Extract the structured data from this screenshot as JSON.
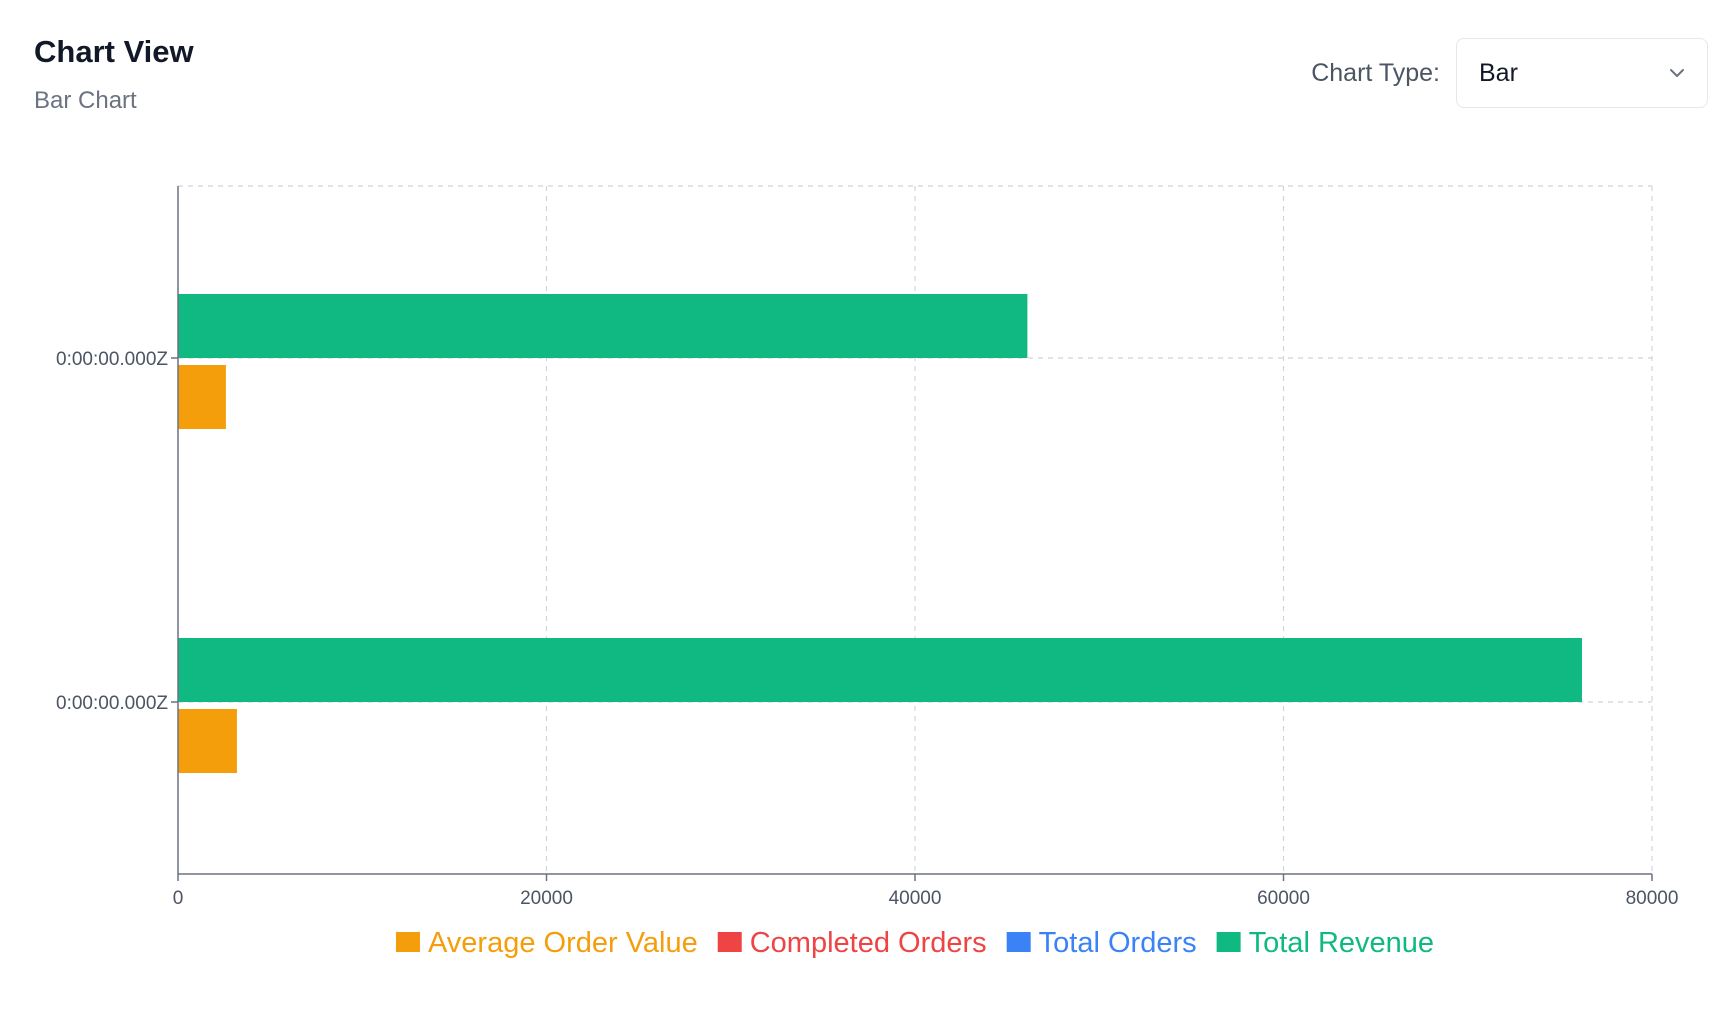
{
  "header": {
    "title": "Chart View",
    "subtitle": "Bar Chart"
  },
  "controls": {
    "chart_type_label": "Chart Type:",
    "chart_type_value": "Bar"
  },
  "chart_data": {
    "type": "bar",
    "orientation": "horizontal",
    "categories": [
      "0:00:00.000Z",
      "0:00:00.000Z"
    ],
    "series": [
      {
        "name": "Average Order Value",
        "color": "#f59e0b",
        "values": [
          2600,
          3200
        ]
      },
      {
        "name": "Completed Orders",
        "color": "#ef4444",
        "values": [
          0,
          0
        ]
      },
      {
        "name": "Total Orders",
        "color": "#3b82f6",
        "values": [
          0,
          0
        ]
      },
      {
        "name": "Total Revenue",
        "color": "#10b981",
        "values": [
          46100,
          76200
        ]
      }
    ],
    "xlim": [
      0,
      80000
    ],
    "xticks": [
      0,
      20000,
      40000,
      60000,
      80000
    ],
    "grid": true,
    "legend_position": "bottom"
  }
}
